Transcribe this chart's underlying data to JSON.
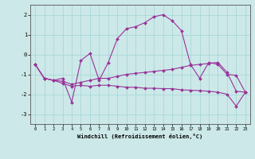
{
  "xlabel": "Windchill (Refroidissement éolien,°C)",
  "background_color": "#cce8e8",
  "grid_color": "#aad8d8",
  "line_color": "#993399",
  "xlim": [
    -0.5,
    23.5
  ],
  "ylim": [
    -3.5,
    2.5
  ],
  "yticks": [
    -3,
    -2,
    -1,
    0,
    1,
    2
  ],
  "xticks": [
    0,
    1,
    2,
    3,
    4,
    5,
    6,
    7,
    8,
    9,
    10,
    11,
    12,
    13,
    14,
    15,
    16,
    17,
    18,
    19,
    20,
    21,
    22,
    23
  ],
  "x": [
    0,
    1,
    2,
    3,
    4,
    5,
    6,
    7,
    8,
    9,
    10,
    11,
    12,
    13,
    14,
    15,
    16,
    17,
    18,
    19,
    20,
    21,
    22,
    23
  ],
  "series1": [
    -0.5,
    -1.2,
    -1.3,
    -1.2,
    -2.4,
    -0.3,
    0.05,
    -1.3,
    -0.4,
    0.8,
    1.3,
    1.4,
    1.6,
    1.9,
    2.0,
    1.7,
    1.2,
    -0.5,
    -1.2,
    -0.4,
    -0.5,
    -1.0,
    -1.05,
    -1.9
  ],
  "series2": [
    -0.5,
    -1.2,
    -1.3,
    -1.35,
    -1.5,
    -1.4,
    -1.3,
    -1.2,
    -1.2,
    -1.1,
    -1.0,
    -0.95,
    -0.9,
    -0.85,
    -0.8,
    -0.75,
    -0.65,
    -0.55,
    -0.5,
    -0.45,
    -0.4,
    -0.9,
    -1.85,
    -1.9
  ],
  "series3": [
    -0.5,
    -1.2,
    -1.3,
    -1.45,
    -1.6,
    -1.55,
    -1.6,
    -1.55,
    -1.55,
    -1.6,
    -1.65,
    -1.65,
    -1.7,
    -1.7,
    -1.72,
    -1.72,
    -1.78,
    -1.8,
    -1.82,
    -1.85,
    -1.9,
    -2.0,
    -2.6,
    -1.9
  ]
}
